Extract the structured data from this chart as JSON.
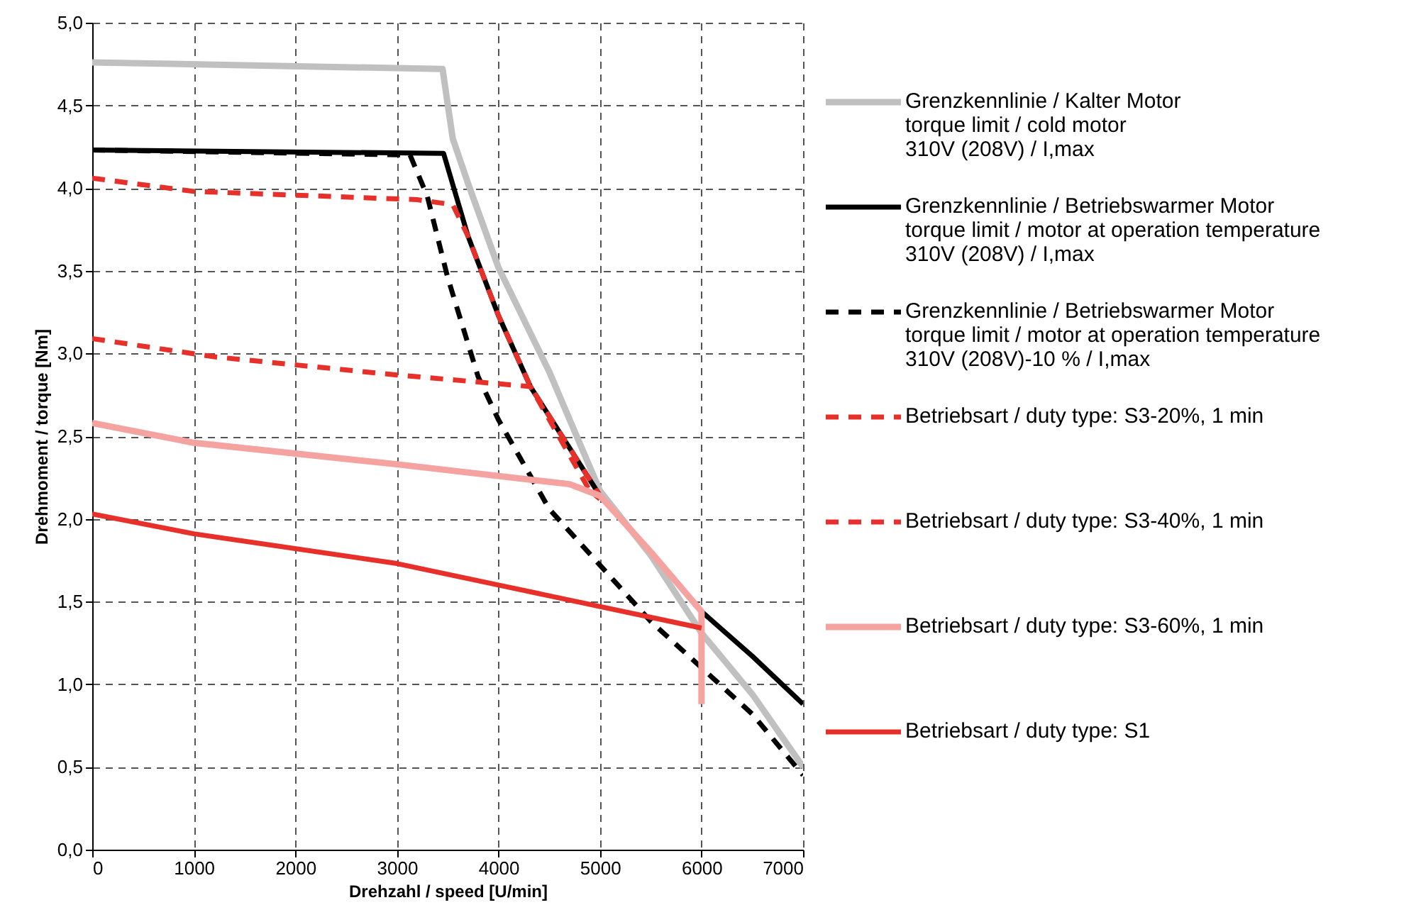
{
  "chart_data": {
    "type": "line",
    "xlabel": "Drehzahl / speed [U/min]",
    "ylabel": "Drehmoment / torque [Nm]",
    "xlim": [
      0,
      7000
    ],
    "xticks": [
      0,
      1000,
      2000,
      3000,
      4000,
      5000,
      6000,
      7000
    ],
    "ylim": [
      0,
      5.0
    ],
    "yticks": [
      {
        "value": 0,
        "label": "0,0"
      },
      {
        "value": 0.5,
        "label": "0,5"
      },
      {
        "value": 1,
        "label": "1,0"
      },
      {
        "value": 1.5,
        "label": "1,5"
      },
      {
        "value": 2,
        "label": "2,0"
      },
      {
        "value": 2.5,
        "label": "2,5"
      },
      {
        "value": 3,
        "label": "3,0"
      },
      {
        "value": 3.5,
        "label": "3,5"
      },
      {
        "value": 4,
        "label": "4,0"
      },
      {
        "value": 4.5,
        "label": "4,5"
      },
      {
        "value": 5,
        "label": "5,0"
      }
    ],
    "grid": true,
    "legend": "right",
    "marker": "none",
    "series": [
      {
        "name": "Grenzkennlinie / Kalter Motor\ntorque limit / cold  motor\n310V (208V) / I,max",
        "color": "#c0c0c0",
        "line_style": "solid",
        "x": [
          0,
          3450,
          3550,
          3700,
          4000,
          4500,
          5000,
          5500,
          6000,
          6500,
          7000
        ],
        "values": [
          4.76,
          4.72,
          4.3,
          4.03,
          3.52,
          2.89,
          2.17,
          1.78,
          1.31,
          0.94,
          0.5
        ]
      },
      {
        "name": "Grenzkennlinie / Betriebswarmer Motor\ntorque limit / motor at operation temperature\n310V (208V) / I,max",
        "color": "#000000",
        "line_style": "solid",
        "x": [
          0,
          3460,
          3700,
          4000,
          4315,
          5000,
          5500,
          6000,
          6500,
          7000
        ],
        "values": [
          4.23,
          4.21,
          3.71,
          3.23,
          2.8,
          2.14,
          1.8,
          1.44,
          1.17,
          0.88
        ]
      },
      {
        "name": "Grenzkennlinie / Betriebswarmer Motor\ntorque limit / motor at operation temperature\n310V (208V)-10 %  / I,max",
        "color": "#000000",
        "line_style": "dashed",
        "x": [
          0,
          3130,
          3300,
          3500,
          3800,
          4000,
          4500,
          5000,
          5500,
          6000,
          6500,
          7000
        ],
        "values": [
          4.23,
          4.2,
          3.95,
          3.46,
          2.86,
          2.6,
          2.06,
          1.72,
          1.38,
          1.1,
          0.82,
          0.45
        ]
      },
      {
        "name": "Betriebsart / duty type: S3-20%, 1 min",
        "color": "#e8302a",
        "line_style": "dashed",
        "x": [
          0,
          1000,
          3200,
          3550,
          3700,
          4000,
          4315,
          5000
        ],
        "values": [
          4.06,
          3.98,
          3.93,
          3.9,
          3.71,
          3.23,
          2.8,
          2.14
        ]
      },
      {
        "name": "Betriebsart / duty type: S3-40%, 1 min",
        "color": "#e8302a",
        "line_style": "dashed",
        "x": [
          0,
          1200,
          3000,
          4315,
          4900,
          5000
        ],
        "values": [
          3.09,
          2.98,
          2.87,
          2.8,
          2.17,
          2.12
        ]
      },
      {
        "name": "Betriebsart / duty type: S3-60%, 1 min",
        "color": "#f4a3a0",
        "line_style": "solid",
        "x": [
          0,
          1000,
          3000,
          4700,
          5000,
          5500,
          6000,
          6000
        ],
        "values": [
          2.58,
          2.46,
          2.33,
          2.21,
          2.14,
          1.8,
          1.44,
          0.88
        ]
      },
      {
        "name": "Betriebsart / duty type: S1",
        "color": "#e8302a",
        "line_style": "solid",
        "x": [
          0,
          1000,
          3000,
          4000,
          6000
        ],
        "values": [
          2.03,
          1.91,
          1.73,
          1.6,
          1.34
        ]
      }
    ]
  }
}
